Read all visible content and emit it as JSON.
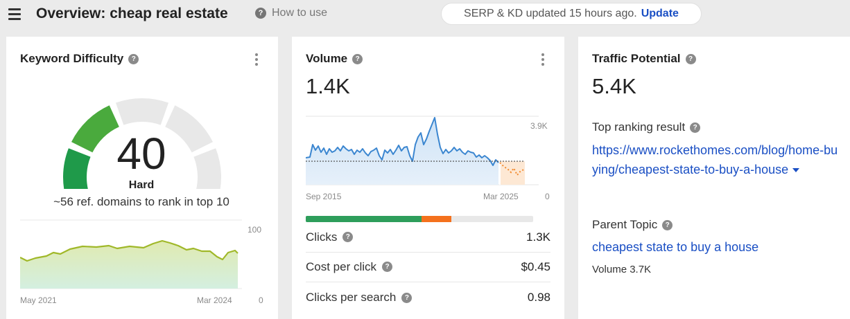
{
  "header": {
    "title": "Overview: cheap real estate",
    "how_to_use": "How to use",
    "serp_status": "SERP & KD updated 15 hours ago.",
    "update_label": "Update"
  },
  "keyword_difficulty": {
    "title": "Keyword Difficulty",
    "value": "40",
    "level": "Hard",
    "description": "~56 ref. domains to rank in top 10",
    "gauge_fill_fraction": 0.4,
    "chart": {
      "y_max_label": "100",
      "y_min_label": "0",
      "x_start_label": "May 2021",
      "x_end_label": "Mar 2024"
    }
  },
  "volume": {
    "title": "Volume",
    "value": "1.4K",
    "chart": {
      "y_max_label": "3.9K",
      "y_min_label": "0",
      "x_start_label": "Sep 2015",
      "x_end_label": "Mar 2025"
    },
    "clicks_split": {
      "organic_fraction": 0.51,
      "paid_fraction": 0.13
    },
    "metrics": [
      {
        "label": "Clicks",
        "value": "1.3K"
      },
      {
        "label": "Cost per click",
        "value": "$0.45"
      },
      {
        "label": "Clicks per search",
        "value": "0.98"
      }
    ]
  },
  "traffic_potential": {
    "title": "Traffic Potential",
    "value": "5.4K",
    "top_ranking_label": "Top ranking result",
    "top_ranking_url": "https://www.rockethomes.com/blog/home-buying/cheapest-state-to-buy-a-house",
    "parent_topic_label": "Parent Topic",
    "parent_topic": "cheapest state to buy a house",
    "parent_volume": "Volume 3.7K"
  },
  "colors": {
    "link": "#1a4fc4",
    "kd_green_dark": "#1f9a4a",
    "kd_green_light": "#b6c923",
    "volume_line": "#3b86d0",
    "forecast": "#f28a2e",
    "organic_bar": "#2e9e5b",
    "paid_bar": "#f4711d"
  }
}
